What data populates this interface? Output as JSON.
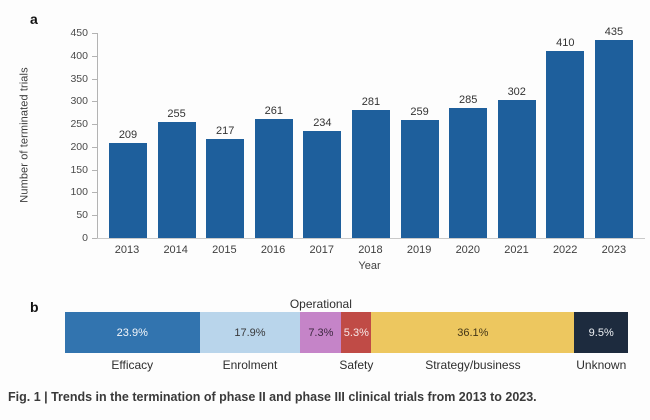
{
  "figure": {
    "caption": "Fig. 1 | Trends in the termination of phase II and phase III clinical trials from 2013 to 2023."
  },
  "panel_a": {
    "label": "a",
    "ylabel": "Number of terminated trials",
    "xlabel": "Year",
    "yticks": [
      450,
      400,
      350,
      300,
      250,
      200,
      150,
      100,
      50,
      0
    ]
  },
  "panel_b": {
    "label": "b",
    "above_label": "Operational"
  },
  "colors": {
    "bar_blue": "#1e5f9c",
    "axis_gray": "#b3b3b3",
    "efficacy_blue": "#3274af",
    "enrolment_light_blue": "#b9d5eb",
    "operational_purple": "#c584c8",
    "safety_red": "#c04b46",
    "strategy_yellow": "#edc75f",
    "unknown_navy": "#1d2b3e"
  },
  "chart_data": [
    {
      "type": "bar",
      "panel": "a",
      "title": "",
      "categories": [
        "2013",
        "2014",
        "2015",
        "2016",
        "2017",
        "2018",
        "2019",
        "2020",
        "2021",
        "2022",
        "2023"
      ],
      "values": [
        209,
        255,
        217,
        261,
        234,
        281,
        259,
        285,
        302,
        410,
        435
      ],
      "xlabel": "Year",
      "ylabel": "Number of terminated trials",
      "ylim": [
        0,
        450
      ],
      "ytick_step": 50,
      "grid": false,
      "bar_color": "#1e5f9c",
      "value_labels": true
    },
    {
      "type": "bar",
      "subtype": "horizontal-stacked-percentage",
      "panel": "b",
      "segments": [
        {
          "label": "Efficacy",
          "value_pct": 23.9,
          "display": "23.9%",
          "color": "#3274af",
          "text_color": "#f5f7fa",
          "label_position": "below"
        },
        {
          "label": "Enrolment",
          "value_pct": 17.9,
          "display": "17.9%",
          "color": "#b9d5eb",
          "text_color": "#38393b",
          "label_position": "below"
        },
        {
          "label": "Operational",
          "value_pct": 7.3,
          "display": "7.3%",
          "color": "#c584c8",
          "text_color": "#3d2740",
          "label_position": "above"
        },
        {
          "label": "Safety",
          "value_pct": 5.3,
          "display": "5.3%",
          "color": "#c04b46",
          "text_color": "#f7e9e8",
          "label_position": "below"
        },
        {
          "label": "Strategy/business",
          "value_pct": 36.1,
          "display": "36.1%",
          "color": "#edc75f",
          "text_color": "#433618",
          "label_position": "below"
        },
        {
          "label": "Unknown",
          "value_pct": 9.5,
          "display": "9.5%",
          "color": "#1d2b3e",
          "text_color": "#eef1f4",
          "label_position": "below"
        }
      ]
    }
  ]
}
